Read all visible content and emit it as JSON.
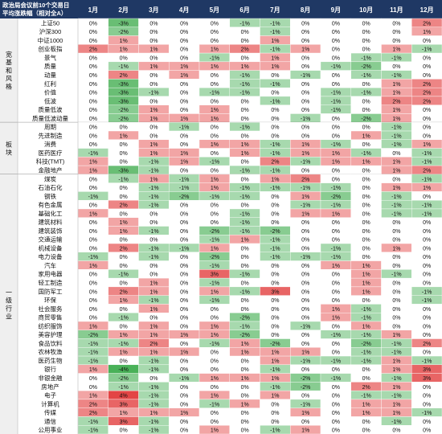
{
  "chart_data": {
    "type": "heatmap",
    "title_lines": [
      "政治局会议前10个交易日",
      "平均涨跌幅（相对全A）"
    ],
    "months": [
      "1月",
      "2月",
      "3月",
      "4月",
      "5月",
      "6月",
      "7月",
      "8月",
      "9月",
      "10月",
      "11月",
      "12月"
    ],
    "colors": {
      "header_bg": "#1f3864",
      "header_text": "#ffffff",
      "group_bg": "#efefef",
      "positive": "#e03030",
      "negative": "#35a845",
      "neutral": "#ffffff",
      "text": "#111111",
      "grid": "#ffffff"
    },
    "groups": [
      {
        "name": "宽基和风格",
        "rows": [
          {
            "name": "上证50",
            "values": [
              0,
              -3,
              0,
              0,
              0,
              -1,
              -1,
              0,
              0,
              0,
              0,
              2
            ]
          },
          {
            "name": "沪深300",
            "values": [
              0,
              -2,
              0,
              0,
              0,
              0,
              -1,
              0,
              0,
              0,
              0,
              1
            ]
          },
          {
            "name": "中证1000",
            "values": [
              0,
              1,
              0,
              0,
              0,
              0,
              1,
              0,
              0,
              0,
              0,
              0
            ]
          },
          {
            "name": "创业板指",
            "values": [
              2,
              1,
              1,
              0,
              1,
              2,
              -1,
              1,
              0,
              0,
              1,
              -1
            ]
          },
          {
            "name": "景气",
            "values": [
              0,
              0,
              0,
              0,
              -1,
              0,
              1,
              0,
              0,
              -1,
              -1,
              0
            ]
          },
          {
            "name": "质量",
            "values": [
              0,
              -1,
              1,
              1,
              1,
              1,
              1,
              0,
              -1,
              -2,
              0,
              0
            ]
          },
          {
            "name": "动量",
            "values": [
              0,
              2,
              0,
              1,
              0,
              -1,
              0,
              -1,
              0,
              -1,
              -1,
              0
            ]
          },
          {
            "name": "红利",
            "values": [
              0,
              -3,
              0,
              0,
              0,
              -1,
              -1,
              0,
              0,
              0,
              1,
              2
            ]
          },
          {
            "name": "价值",
            "values": [
              0,
              -3,
              -1,
              0,
              -1,
              -1,
              0,
              0,
              -1,
              -1,
              1,
              2
            ]
          },
          {
            "name": "低波",
            "values": [
              0,
              -3,
              0,
              0,
              0,
              0,
              -1,
              0,
              -1,
              0,
              2,
              2
            ]
          },
          {
            "name": "质量低波",
            "values": [
              0,
              -2,
              1,
              0,
              1,
              0,
              0,
              0,
              -1,
              0,
              1,
              0
            ]
          },
          {
            "name": "质量低波动量",
            "values": [
              0,
              -2,
              1,
              1,
              1,
              0,
              0,
              -1,
              0,
              -2,
              1,
              0
            ]
          }
        ]
      },
      {
        "name": "板块",
        "rows": [
          {
            "name": "周期",
            "values": [
              0,
              0,
              0,
              -1,
              0,
              -1,
              0,
              0,
              0,
              0,
              -1,
              0
            ]
          },
          {
            "name": "先进制造",
            "values": [
              0,
              1,
              0,
              0,
              0,
              0,
              0,
              0,
              0,
              1,
              -1,
              0
            ]
          },
          {
            "name": "消费",
            "values": [
              0,
              0,
              1,
              0,
              1,
              1,
              -1,
              1,
              -1,
              0,
              -1,
              1
            ]
          },
          {
            "name": "医药医疗",
            "values": [
              -1,
              0,
              1,
              1,
              0,
              1,
              -1,
              1,
              1,
              -1,
              0,
              -1
            ]
          },
          {
            "name": "科技(TMT)",
            "values": [
              1,
              0,
              -1,
              1,
              -1,
              0,
              2,
              -1,
              1,
              1,
              1,
              -1
            ]
          },
          {
            "name": "金融地产",
            "values": [
              1,
              -3,
              -1,
              0,
              0,
              -1,
              -1,
              0,
              0,
              0,
              1,
              2
            ]
          }
        ]
      },
      {
        "name": "一级行业",
        "rows": [
          {
            "name": "煤炭",
            "values": [
              0,
              -1,
              1,
              -1,
              1,
              0,
              1,
              2,
              0,
              0,
              0,
              -1
            ]
          },
          {
            "name": "石油石化",
            "values": [
              0,
              0,
              -1,
              -1,
              1,
              -1,
              -1,
              -1,
              -1,
              0,
              1,
              1
            ]
          },
          {
            "name": "钢铁",
            "values": [
              -1,
              0,
              -1,
              -2,
              -1,
              -1,
              0,
              1,
              -2,
              0,
              -1,
              0
            ]
          },
          {
            "name": "有色金属",
            "values": [
              0,
              2,
              -1,
              0,
              0,
              0,
              0,
              -1,
              -1,
              0,
              -1,
              -1
            ]
          },
          {
            "name": "基础化工",
            "values": [
              1,
              0,
              0,
              0,
              0,
              -1,
              0,
              1,
              1,
              0,
              -1,
              -1
            ]
          },
          {
            "name": "建筑材料",
            "values": [
              0,
              1,
              0,
              0,
              0,
              -1,
              0,
              0,
              0,
              0,
              0,
              0
            ]
          },
          {
            "name": "建筑装饰",
            "values": [
              0,
              1,
              -1,
              0,
              -2,
              -1,
              -2,
              0,
              0,
              0,
              0,
              0
            ]
          },
          {
            "name": "交通运输",
            "values": [
              0,
              0,
              0,
              0,
              -1,
              1,
              -1,
              0,
              0,
              0,
              0,
              0
            ]
          },
          {
            "name": "机械设备",
            "values": [
              0,
              2,
              -1,
              -1,
              1,
              0,
              -1,
              0,
              -1,
              0,
              1,
              0
            ]
          },
          {
            "name": "电力设备",
            "values": [
              -1,
              0,
              -1,
              0,
              -2,
              0,
              -1,
              -1,
              -1,
              0,
              0,
              0
            ]
          },
          {
            "name": "汽车",
            "values": [
              1,
              0,
              0,
              0,
              -1,
              0,
              0,
              0,
              1,
              1,
              0,
              0
            ]
          },
          {
            "name": "家用电器",
            "values": [
              0,
              -1,
              0,
              0,
              3,
              -1,
              0,
              0,
              0,
              1,
              -1,
              0
            ]
          },
          {
            "name": "轻工制造",
            "values": [
              0,
              0,
              1,
              0,
              -1,
              0,
              0,
              0,
              0,
              1,
              0,
              0
            ]
          },
          {
            "name": "国防军工",
            "values": [
              0,
              2,
              1,
              0,
              1,
              -1,
              3,
              0,
              0,
              1,
              0,
              -1
            ]
          },
          {
            "name": "环保",
            "values": [
              0,
              1,
              -1,
              0,
              -1,
              0,
              0,
              0,
              0,
              0,
              0,
              -1
            ]
          },
          {
            "name": "社会服务",
            "values": [
              0,
              0,
              1,
              0,
              0,
              0,
              0,
              0,
              1,
              -1,
              0,
              0
            ]
          },
          {
            "name": "商贸零售",
            "values": [
              0,
              -1,
              0,
              0,
              0,
              -2,
              0,
              0,
              1,
              -1,
              0,
              0
            ]
          },
          {
            "name": "纺织服饰",
            "values": [
              1,
              0,
              1,
              0,
              1,
              -1,
              0,
              -1,
              0,
              1,
              0,
              0
            ]
          },
          {
            "name": "美容护理",
            "values": [
              -2,
              1,
              1,
              1,
              1,
              -2,
              0,
              0,
              -1,
              -1,
              1,
              0
            ]
          },
          {
            "name": "食品饮料",
            "values": [
              -1,
              -1,
              2,
              0,
              -1,
              1,
              -2,
              0,
              0,
              -2,
              -1,
              2
            ]
          },
          {
            "name": "农林牧渔",
            "values": [
              -1,
              1,
              1,
              1,
              0,
              1,
              1,
              1,
              0,
              -1,
              -1,
              0
            ]
          },
          {
            "name": "医药生物",
            "values": [
              -1,
              0,
              -1,
              0,
              0,
              0,
              1,
              -1,
              -1,
              -1,
              1,
              -1
            ]
          },
          {
            "name": "银行",
            "values": [
              1,
              -4,
              -1,
              0,
              0,
              0,
              -1,
              0,
              0,
              0,
              1,
              3
            ]
          },
          {
            "name": "非银金融",
            "values": [
              0,
              -2,
              0,
              -1,
              1,
              1,
              1,
              -2,
              -1,
              0,
              -1,
              3
            ]
          },
          {
            "name": "房地产",
            "values": [
              0,
              -1,
              -1,
              0,
              0,
              0,
              -1,
              -2,
              0,
              2,
              1,
              0
            ]
          },
          {
            "name": "电子",
            "values": [
              1,
              4,
              -1,
              0,
              1,
              0,
              1,
              0,
              0,
              -1,
              -1,
              0
            ]
          },
          {
            "name": "计算机",
            "values": [
              2,
              3,
              -1,
              0,
              -1,
              1,
              0,
              -1,
              0,
              1,
              1,
              0
            ]
          },
          {
            "name": "传媒",
            "values": [
              2,
              1,
              1,
              1,
              0,
              0,
              0,
              1,
              0,
              1,
              1,
              -1
            ]
          },
          {
            "name": "通信",
            "values": [
              -1,
              3,
              -1,
              0,
              0,
              0,
              0,
              0,
              0,
              0,
              -1,
              0
            ]
          },
          {
            "name": "公用事业",
            "values": [
              -1,
              0,
              -1,
              0,
              1,
              0,
              -1,
              1,
              0,
              0,
              0,
              0
            ]
          }
        ]
      }
    ]
  }
}
